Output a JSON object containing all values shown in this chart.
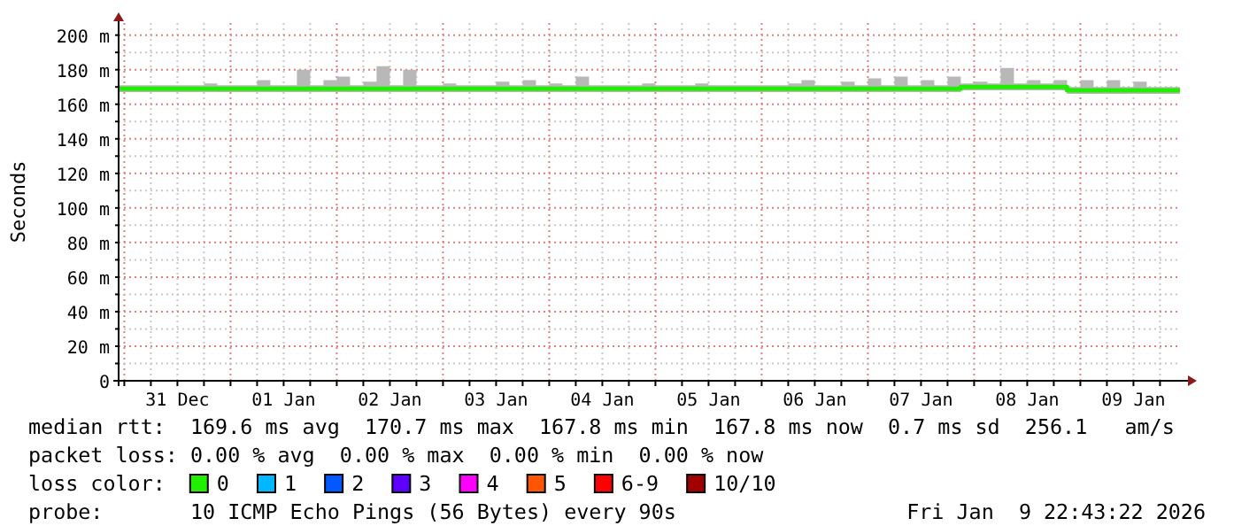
{
  "chart_data": {
    "type": "step",
    "ylabel": "Seconds",
    "xlim": [
      "2025-12-30T22:43",
      "2026-01-09T22:43"
    ],
    "ylim": [
      0,
      207
    ],
    "yticks": [
      {
        "value": 0,
        "label": "0"
      },
      {
        "value": 10,
        "label": null
      },
      {
        "value": 20,
        "label": "20 m"
      },
      {
        "value": 30,
        "label": null
      },
      {
        "value": 40,
        "label": "40 m"
      },
      {
        "value": 50,
        "label": null
      },
      {
        "value": 60,
        "label": "60 m"
      },
      {
        "value": 70,
        "label": null
      },
      {
        "value": 80,
        "label": "80 m"
      },
      {
        "value": 90,
        "label": null
      },
      {
        "value": 100,
        "label": "100 m"
      },
      {
        "value": 110,
        "label": null
      },
      {
        "value": 120,
        "label": "120 m"
      },
      {
        "value": 130,
        "label": null
      },
      {
        "value": 140,
        "label": "140 m"
      },
      {
        "value": 150,
        "label": null
      },
      {
        "value": 160,
        "label": "160 m"
      },
      {
        "value": 170,
        "label": null
      },
      {
        "value": 180,
        "label": "180 m"
      },
      {
        "value": 190,
        "label": null
      },
      {
        "value": 200,
        "label": "200 m"
      }
    ],
    "xticks": [
      {
        "value": "2025-12-31T00:00",
        "label": null
      },
      {
        "value": "2025-12-31T06:00",
        "label": null
      },
      {
        "value": "2025-12-31T12:00",
        "label": "31 Dec"
      },
      {
        "value": "2025-12-31T18:00",
        "label": null
      },
      {
        "value": "2026-01-01T00:00",
        "label": null
      },
      {
        "value": "2026-01-01T06:00",
        "label": null
      },
      {
        "value": "2026-01-01T12:00",
        "label": "01 Jan"
      },
      {
        "value": "2026-01-01T18:00",
        "label": null
      },
      {
        "value": "2026-01-02T00:00",
        "label": null
      },
      {
        "value": "2026-01-02T06:00",
        "label": null
      },
      {
        "value": "2026-01-02T12:00",
        "label": "02 Jan"
      },
      {
        "value": "2026-01-02T18:00",
        "label": null
      },
      {
        "value": "2026-01-03T00:00",
        "label": null
      },
      {
        "value": "2026-01-03T06:00",
        "label": null
      },
      {
        "value": "2026-01-03T12:00",
        "label": "03 Jan"
      },
      {
        "value": "2026-01-03T18:00",
        "label": null
      },
      {
        "value": "2026-01-04T00:00",
        "label": null
      },
      {
        "value": "2026-01-04T06:00",
        "label": null
      },
      {
        "value": "2026-01-04T12:00",
        "label": "04 Jan"
      },
      {
        "value": "2026-01-04T18:00",
        "label": null
      },
      {
        "value": "2026-01-05T00:00",
        "label": null
      },
      {
        "value": "2026-01-05T06:00",
        "label": null
      },
      {
        "value": "2026-01-05T12:00",
        "label": "05 Jan"
      },
      {
        "value": "2026-01-05T18:00",
        "label": null
      },
      {
        "value": "2026-01-06T00:00",
        "label": null
      },
      {
        "value": "2026-01-06T06:00",
        "label": null
      },
      {
        "value": "2026-01-06T12:00",
        "label": "06 Jan"
      },
      {
        "value": "2026-01-06T18:00",
        "label": null
      },
      {
        "value": "2026-01-07T00:00",
        "label": null
      },
      {
        "value": "2026-01-07T06:00",
        "label": null
      },
      {
        "value": "2026-01-07T12:00",
        "label": "07 Jan"
      },
      {
        "value": "2026-01-07T18:00",
        "label": null
      },
      {
        "value": "2026-01-08T00:00",
        "label": null
      },
      {
        "value": "2026-01-08T06:00",
        "label": null
      },
      {
        "value": "2026-01-08T12:00",
        "label": "08 Jan"
      },
      {
        "value": "2026-01-08T18:00",
        "label": null
      },
      {
        "value": "2026-01-09T00:00",
        "label": null
      },
      {
        "value": "2026-01-09T06:00",
        "label": null
      },
      {
        "value": "2026-01-09T12:00",
        "label": "09 Jan"
      },
      {
        "value": "2026-01-09T18:00",
        "label": null
      }
    ],
    "grid": true,
    "legend": "bottom",
    "legend_title": "loss color:",
    "x": [
      "2025-12-30T22:43",
      "2025-12-31T00:00",
      "2025-12-31T03:00",
      "2025-12-31T06:00",
      "2025-12-31T09:00",
      "2025-12-31T12:00",
      "2025-12-31T15:00",
      "2025-12-31T18:00",
      "2025-12-31T21:00",
      "2026-01-01T00:00",
      "2026-01-01T03:00",
      "2026-01-01T06:00",
      "2026-01-01T09:00",
      "2026-01-01T12:00",
      "2026-01-01T15:00",
      "2026-01-01T18:00",
      "2026-01-01T21:00",
      "2026-01-02T00:00",
      "2026-01-02T03:00",
      "2026-01-02T06:00",
      "2026-01-02T09:00",
      "2026-01-02T12:00",
      "2026-01-02T15:00",
      "2026-01-02T18:00",
      "2026-01-02T21:00",
      "2026-01-03T00:00",
      "2026-01-03T03:00",
      "2026-01-03T06:00",
      "2026-01-03T09:00",
      "2026-01-03T12:00",
      "2026-01-03T15:00",
      "2026-01-03T18:00",
      "2026-01-03T21:00",
      "2026-01-04T00:00",
      "2026-01-04T03:00",
      "2026-01-04T06:00",
      "2026-01-04T09:00",
      "2026-01-04T12:00",
      "2026-01-04T15:00",
      "2026-01-04T18:00",
      "2026-01-04T21:00",
      "2026-01-05T00:00",
      "2026-01-05T03:00",
      "2026-01-05T06:00",
      "2026-01-05T09:00",
      "2026-01-05T12:00",
      "2026-01-05T15:00",
      "2026-01-05T18:00",
      "2026-01-05T21:00",
      "2026-01-06T00:00",
      "2026-01-06T03:00",
      "2026-01-06T06:00",
      "2026-01-06T09:00",
      "2026-01-06T12:00",
      "2026-01-06T15:00",
      "2026-01-06T18:00",
      "2026-01-06T21:00",
      "2026-01-07T00:00",
      "2026-01-07T03:00",
      "2026-01-07T06:00",
      "2026-01-07T09:00",
      "2026-01-07T12:00",
      "2026-01-07T15:00",
      "2026-01-07T18:00",
      "2026-01-07T21:00",
      "2026-01-08T00:00",
      "2026-01-08T03:00",
      "2026-01-08T06:00",
      "2026-01-08T09:00",
      "2026-01-08T12:00",
      "2026-01-08T15:00",
      "2026-01-08T18:00",
      "2026-01-08T21:00",
      "2026-01-09T00:00",
      "2026-01-09T03:00",
      "2026-01-09T06:00",
      "2026-01-09T09:00",
      "2026-01-09T12:00",
      "2026-01-09T15:00",
      "2026-01-09T18:00",
      "2026-01-09T21:00",
      "2026-01-09T22:30"
    ],
    "series": [
      {
        "name": "0",
        "color": "#22ee00",
        "values": [
          169,
          169,
          169,
          169,
          169,
          169,
          169,
          169,
          169,
          169,
          169,
          169,
          169,
          169,
          169,
          169,
          169,
          169,
          169,
          169,
          169,
          169,
          169,
          169,
          169,
          169,
          169,
          169,
          169,
          169,
          169,
          169,
          169,
          169,
          169,
          169,
          169,
          169,
          169,
          169,
          169,
          169,
          169,
          169,
          169,
          169,
          169,
          169,
          169,
          169,
          169,
          169,
          169,
          169,
          169,
          169,
          169,
          169,
          169,
          169,
          169,
          169,
          169,
          169,
          170,
          170,
          170,
          170,
          170,
          170,
          170,
          170,
          168,
          168,
          168,
          168,
          168,
          168,
          168,
          168,
          168,
          168
        ],
        "lower": [
          167,
          167,
          167,
          167,
          167,
          167,
          167,
          167,
          167,
          167,
          167,
          167,
          167,
          167,
          167,
          167,
          167,
          167,
          167,
          167,
          167,
          167,
          167,
          167,
          167,
          167,
          167,
          167,
          167,
          167,
          167,
          167,
          167,
          167,
          167,
          167,
          167,
          167,
          167,
          167,
          167,
          167,
          167,
          167,
          167,
          167,
          167,
          167,
          167,
          167,
          167,
          167,
          167,
          167,
          167,
          167,
          167,
          167,
          167,
          167,
          167,
          167,
          167,
          167,
          168,
          168,
          168,
          168,
          168,
          168,
          168,
          168,
          166,
          166,
          166,
          166,
          166,
          166,
          166,
          166,
          166,
          166
        ],
        "upper": [
          171,
          171,
          171,
          171,
          171,
          171,
          171,
          172,
          171,
          171,
          171,
          174,
          171,
          171,
          180,
          171,
          174,
          176,
          171,
          173,
          182,
          171,
          180,
          171,
          171,
          172,
          171,
          171,
          171,
          173,
          171,
          174,
          171,
          172,
          171,
          176,
          171,
          171,
          171,
          171,
          172,
          171,
          171,
          171,
          172,
          171,
          171,
          171,
          171,
          171,
          171,
          172,
          174,
          171,
          171,
          173,
          171,
          175,
          171,
          176,
          171,
          174,
          171,
          176,
          172,
          173,
          172,
          181,
          172,
          174,
          172,
          174,
          170,
          174,
          170,
          174,
          170,
          173,
          170,
          170,
          170,
          170
        ]
      },
      {
        "name": "1",
        "color": "#00b8ff",
        "values": [
          null,
          null,
          null,
          null,
          null,
          null,
          null,
          null,
          null,
          null,
          null,
          null,
          null,
          null,
          null,
          null,
          null,
          null,
          null,
          null,
          null,
          null,
          null,
          null,
          null,
          null,
          null,
          null,
          null,
          null,
          null,
          null,
          null,
          null,
          null,
          null,
          null,
          null,
          null,
          null,
          null,
          null,
          null,
          null,
          null,
          null,
          null,
          null,
          null,
          null,
          null,
          null,
          null,
          null,
          null,
          null,
          null,
          null,
          null,
          null,
          null,
          null,
          null,
          null,
          null,
          null,
          null,
          null,
          null,
          null,
          null,
          null,
          null,
          null,
          null,
          null,
          null,
          null,
          null,
          null,
          null,
          null
        ]
      },
      {
        "name": "2",
        "color": "#0059ff",
        "values": [
          null,
          null,
          null,
          null,
          null,
          null,
          null,
          null,
          null,
          null,
          null,
          null,
          null,
          null,
          null,
          null,
          null,
          null,
          null,
          null,
          null,
          null,
          null,
          null,
          null,
          null,
          null,
          null,
          null,
          null,
          null,
          null,
          null,
          null,
          null,
          null,
          null,
          null,
          null,
          null,
          null,
          null,
          null,
          null,
          null,
          null,
          null,
          null,
          null,
          null,
          null,
          null,
          null,
          null,
          null,
          null,
          null,
          null,
          null,
          null,
          null,
          null,
          null,
          null,
          null,
          null,
          null,
          null,
          null,
          null,
          null,
          null,
          null,
          null,
          null,
          null,
          null,
          null,
          null,
          null,
          null,
          null
        ]
      },
      {
        "name": "3",
        "color": "#5e00ff",
        "values": [
          null,
          null,
          null,
          null,
          null,
          null,
          null,
          null,
          null,
          null,
          null,
          null,
          null,
          null,
          null,
          null,
          null,
          null,
          null,
          null,
          null,
          null,
          null,
          null,
          null,
          null,
          null,
          null,
          null,
          null,
          null,
          null,
          null,
          null,
          null,
          null,
          null,
          null,
          null,
          null,
          null,
          null,
          null,
          null,
          null,
          null,
          null,
          null,
          null,
          null,
          null,
          null,
          null,
          null,
          null,
          null,
          null,
          null,
          null,
          null,
          null,
          null,
          null,
          null,
          null,
          null,
          null,
          null,
          null,
          null,
          null,
          null,
          null,
          null,
          null,
          null,
          null,
          null,
          null,
          null,
          null,
          null
        ]
      },
      {
        "name": "4",
        "color": "#ff00ff",
        "values": [
          null,
          null,
          null,
          null,
          null,
          null,
          null,
          null,
          null,
          null,
          null,
          null,
          null,
          null,
          null,
          null,
          null,
          null,
          null,
          null,
          null,
          null,
          null,
          null,
          null,
          null,
          null,
          null,
          null,
          null,
          null,
          null,
          null,
          null,
          null,
          null,
          null,
          null,
          null,
          null,
          null,
          null,
          null,
          null,
          null,
          null,
          null,
          null,
          null,
          null,
          null,
          null,
          null,
          null,
          null,
          null,
          null,
          null,
          null,
          null,
          null,
          null,
          null,
          null,
          null,
          null,
          null,
          null,
          null,
          null,
          null,
          null,
          null,
          null,
          null,
          null,
          null,
          null,
          null,
          null,
          null,
          null
        ]
      },
      {
        "name": "5",
        "color": "#ff5500",
        "values": [
          null,
          null,
          null,
          null,
          null,
          null,
          null,
          null,
          null,
          null,
          null,
          null,
          null,
          null,
          null,
          null,
          null,
          null,
          null,
          null,
          null,
          null,
          null,
          null,
          null,
          null,
          null,
          null,
          null,
          null,
          null,
          null,
          null,
          null,
          null,
          null,
          null,
          null,
          null,
          null,
          null,
          null,
          null,
          null,
          null,
          null,
          null,
          null,
          null,
          null,
          null,
          null,
          null,
          null,
          null,
          null,
          null,
          null,
          null,
          null,
          null,
          null,
          null,
          null,
          null,
          null,
          null,
          null,
          null,
          null,
          null,
          null,
          null,
          null,
          null,
          null,
          null,
          null,
          null,
          null,
          null,
          null
        ]
      },
      {
        "name": "6-9",
        "color": "#ff0000",
        "values": [
          null,
          null,
          null,
          null,
          null,
          null,
          null,
          null,
          null,
          null,
          null,
          null,
          null,
          null,
          null,
          null,
          null,
          null,
          null,
          null,
          null,
          null,
          null,
          null,
          null,
          null,
          null,
          null,
          null,
          null,
          null,
          null,
          null,
          null,
          null,
          null,
          null,
          null,
          null,
          null,
          null,
          null,
          null,
          null,
          null,
          null,
          null,
          null,
          null,
          null,
          null,
          null,
          null,
          null,
          null,
          null,
          null,
          null,
          null,
          null,
          null,
          null,
          null,
          null,
          null,
          null,
          null,
          null,
          null,
          null,
          null,
          null,
          null,
          null,
          null,
          null,
          null,
          null,
          null,
          null,
          null,
          null
        ]
      },
      {
        "name": "10/10",
        "color": "#a10000",
        "values": [
          null,
          null,
          null,
          null,
          null,
          null,
          null,
          null,
          null,
          null,
          null,
          null,
          null,
          null,
          null,
          null,
          null,
          null,
          null,
          null,
          null,
          null,
          null,
          null,
          null,
          null,
          null,
          null,
          null,
          null,
          null,
          null,
          null,
          null,
          null,
          null,
          null,
          null,
          null,
          null,
          null,
          null,
          null,
          null,
          null,
          null,
          null,
          null,
          null,
          null,
          null,
          null,
          null,
          null,
          null,
          null,
          null,
          null,
          null,
          null,
          null,
          null,
          null,
          null,
          null,
          null,
          null,
          null,
          null,
          null,
          null,
          null,
          null,
          null,
          null,
          null,
          null,
          null,
          null,
          null,
          null,
          null
        ]
      }
    ],
    "annotations": [
      "median rtt:  169.6 ms avg  170.7 ms max  167.8 ms min  167.8 ms now  0.7 ms sd  256.1   am/s",
      "packet loss: 0.00 % avg  0.00 % max  0.00 % min  0.00 % now",
      "probe:       10 ICMP Echo Pings (56 Bytes) every 90s",
      "Fri Jan  9 22:43:22 2026"
    ]
  }
}
